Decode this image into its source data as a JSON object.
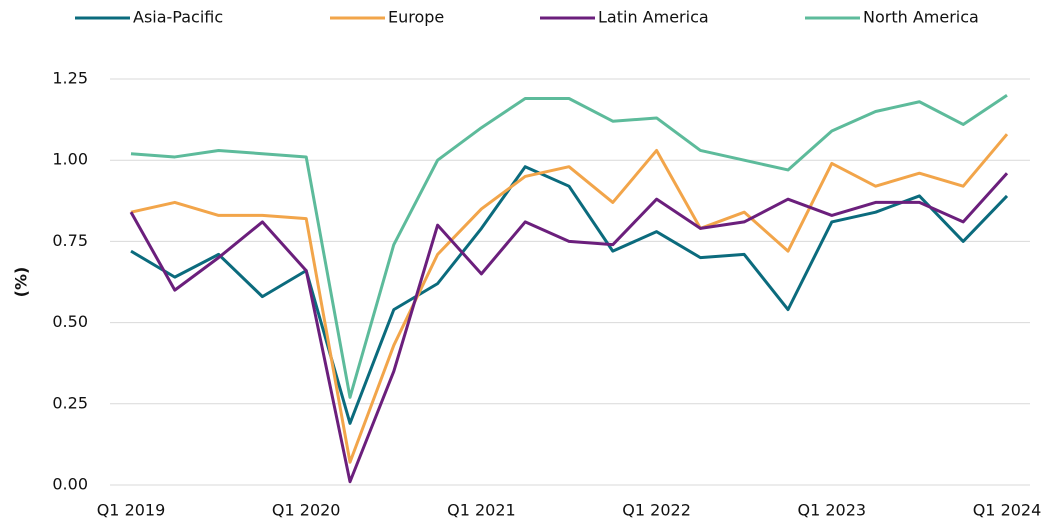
{
  "chart_data": {
    "type": "line",
    "y_label": "(%)",
    "categories": [
      "Q1 2019",
      null,
      null,
      null,
      "Q1 2020",
      null,
      null,
      null,
      "Q1 2021",
      null,
      null,
      null,
      "Q1 2022",
      null,
      null,
      null,
      "Q1 2023",
      null,
      null,
      null,
      "Q1 2024"
    ],
    "series": [
      {
        "name": "Asia-Pacific",
        "color": "#0b6b7d",
        "values": [
          0.72,
          0.64,
          0.71,
          0.58,
          0.66,
          0.19,
          0.54,
          0.62,
          0.79,
          0.98,
          0.92,
          0.72,
          0.78,
          0.7,
          0.71,
          0.54,
          0.81,
          0.84,
          0.89,
          0.75,
          0.89
        ]
      },
      {
        "name": "Europe",
        "color": "#f2a54a",
        "values": [
          0.84,
          0.87,
          0.83,
          0.83,
          0.82,
          0.07,
          0.43,
          0.71,
          0.85,
          0.95,
          0.98,
          0.87,
          1.03,
          0.79,
          0.84,
          0.72,
          0.99,
          0.92,
          0.96,
          0.92,
          1.08
        ]
      },
      {
        "name": "Latin America",
        "color": "#6b1f7c",
        "values": [
          0.84,
          0.6,
          0.7,
          0.81,
          0.66,
          0.01,
          0.35,
          0.8,
          0.65,
          0.81,
          0.75,
          0.74,
          0.88,
          0.79,
          0.81,
          0.88,
          0.83,
          0.87,
          0.87,
          0.81,
          0.96
        ]
      },
      {
        "name": "North America",
        "color": "#5dbb9b",
        "values": [
          1.02,
          1.01,
          1.03,
          1.02,
          1.01,
          0.27,
          0.74,
          1.0,
          1.1,
          1.19,
          1.19,
          1.12,
          1.13,
          1.03,
          1.0,
          0.97,
          1.09,
          1.15,
          1.18,
          1.11,
          1.2
        ]
      }
    ],
    "ylim": [
      0,
      1.25
    ],
    "yticks": [
      {
        "value": 0,
        "label": "0.00"
      },
      {
        "value": 0.25,
        "label": "0.25"
      },
      {
        "value": 0.5,
        "label": "0.50"
      },
      {
        "value": 0.75,
        "label": "0.75"
      },
      {
        "value": 1,
        "label": "1.00"
      },
      {
        "value": 1.25,
        "label": "1.25"
      }
    ],
    "grid": true,
    "legend": "top"
  }
}
